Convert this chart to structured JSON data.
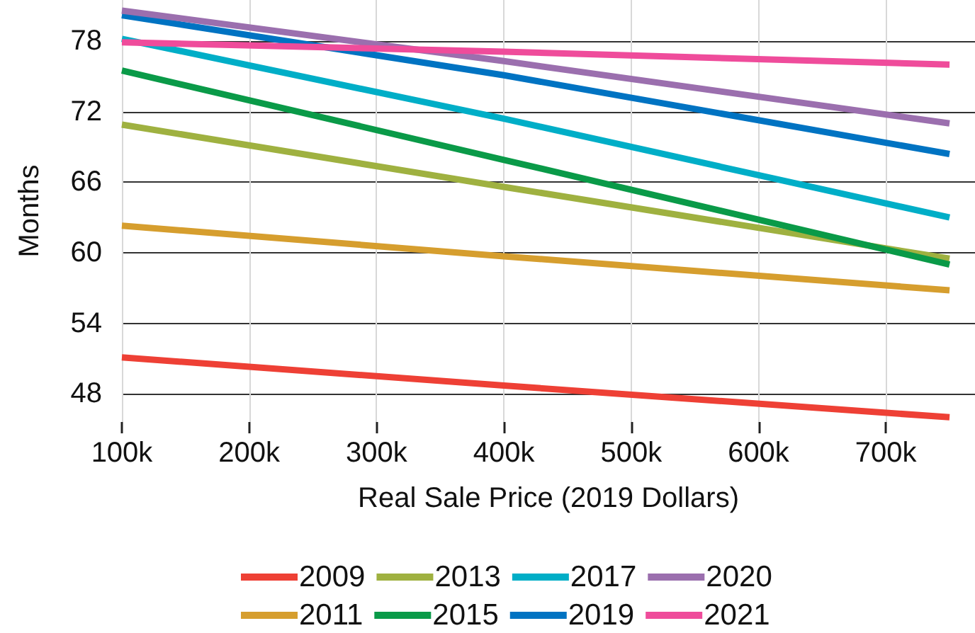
{
  "chart_data": {
    "type": "line",
    "xlabel": "Real Sale Price (2019 Dollars)",
    "ylabel": "Months",
    "x": [
      100000,
      400000,
      750000
    ],
    "xlim": [
      100000,
      770000
    ],
    "xticks": [
      {
        "value": 100000,
        "label": "100k"
      },
      {
        "value": 200000,
        "label": "200k"
      },
      {
        "value": 300000,
        "label": "300k"
      },
      {
        "value": 400000,
        "label": "400k"
      },
      {
        "value": 500000,
        "label": "500k"
      },
      {
        "value": 600000,
        "label": "600k"
      },
      {
        "value": 700000,
        "label": "700k"
      }
    ],
    "ylim": [
      45.6,
      81.5
    ],
    "yticks": [
      48,
      54,
      60,
      66,
      72,
      78
    ],
    "grid": true,
    "legend": "bottom",
    "marker": "none",
    "line_style": "solid",
    "series": [
      {
        "name": "2009",
        "color": "#ee4035",
        "values": [
          51.1,
          48.7,
          46.0
        ]
      },
      {
        "name": "2011",
        "color": "#d69e2e",
        "values": [
          62.3,
          59.7,
          56.8
        ]
      },
      {
        "name": "2013",
        "color": "#9fb140",
        "values": [
          70.9,
          65.6,
          59.5
        ]
      },
      {
        "name": "2015",
        "color": "#0a9a48",
        "values": [
          75.5,
          67.9,
          59.0
        ]
      },
      {
        "name": "2017",
        "color": "#00aec7",
        "values": [
          78.2,
          71.4,
          63.0
        ]
      },
      {
        "name": "2019",
        "color": "#0073c2",
        "values": [
          80.2,
          75.1,
          68.4
        ]
      },
      {
        "name": "2020",
        "color": "#9b6fae",
        "values": [
          80.6,
          76.3,
          71.0
        ]
      },
      {
        "name": "2021",
        "color": "#ef4c9b",
        "values": [
          77.9,
          77.1,
          76.0
        ]
      }
    ]
  }
}
